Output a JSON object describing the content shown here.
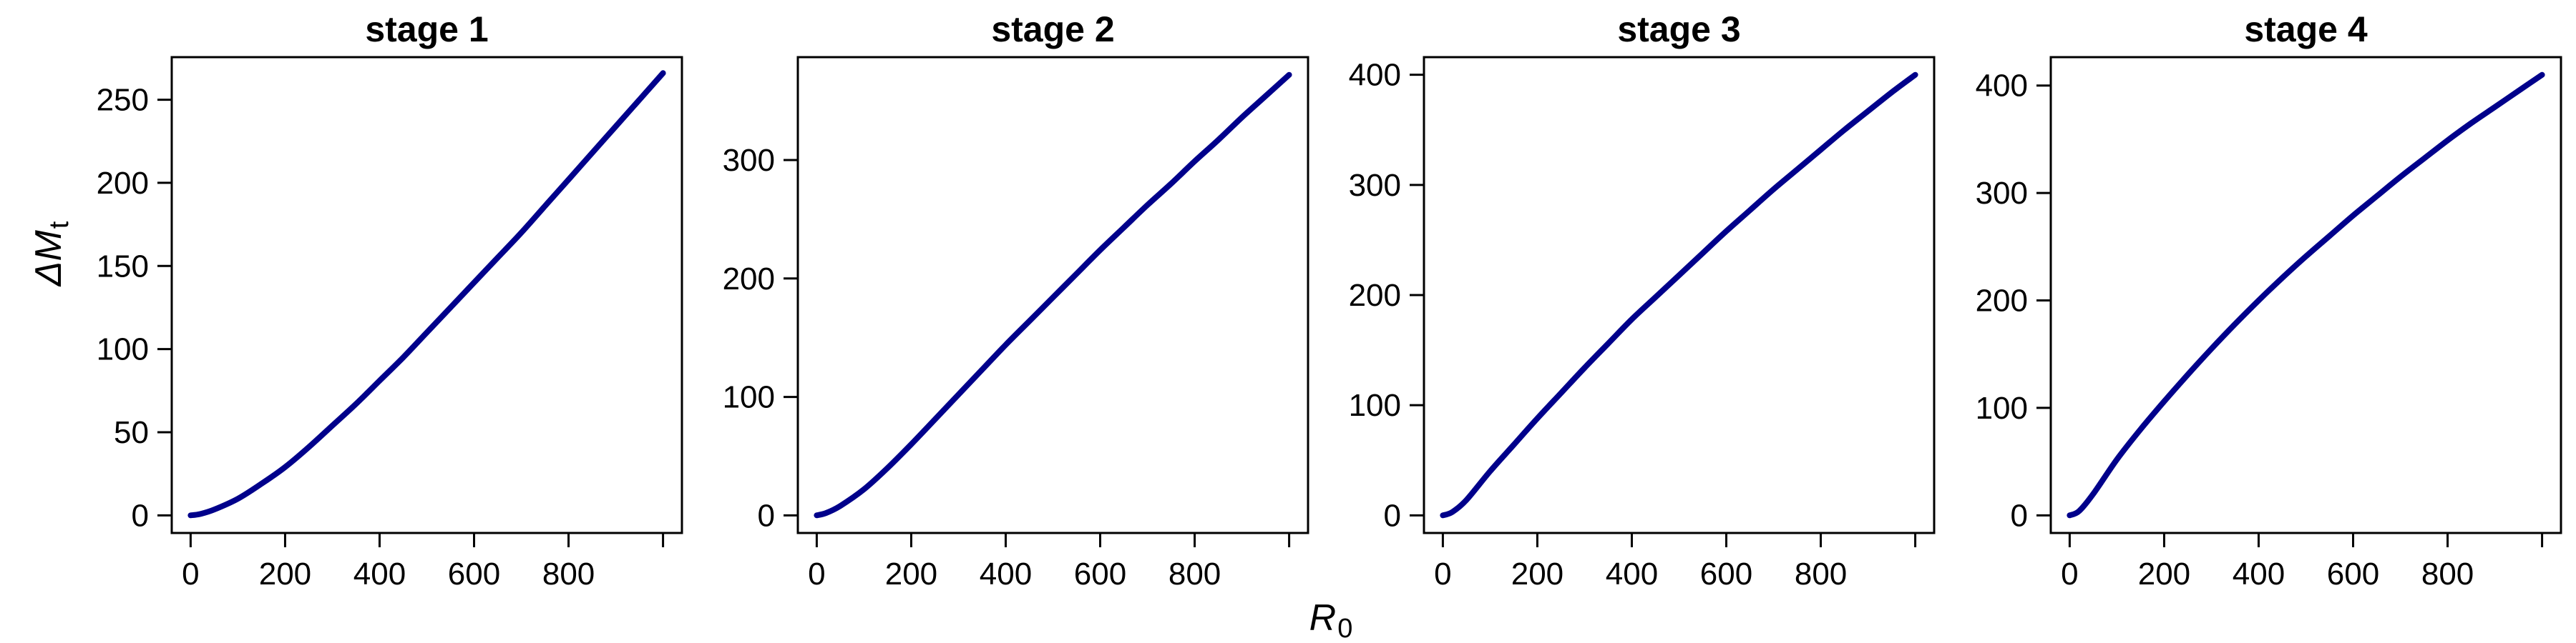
{
  "chart_data": {
    "type": "line",
    "shared_xlabel": "R",
    "shared_xlabel_sub": "0",
    "shared_ylabel": "ΔM",
    "shared_ylabel_sub": "t",
    "line_color": "#00008B",
    "panels": [
      {
        "title": "stage 1",
        "xlim": [
          0,
          1000
        ],
        "ylim": [
          0,
          265
        ],
        "xticks": [
          0,
          200,
          400,
          600,
          800,
          1000
        ],
        "xtick_labels": [
          "0",
          "200",
          "400",
          "600",
          "800",
          ""
        ],
        "yticks": [
          0,
          50,
          100,
          150,
          200,
          250
        ],
        "ytick_labels": [
          "0",
          "50",
          "100",
          "150",
          "200",
          "250"
        ],
        "x": [
          0,
          20,
          50,
          100,
          150,
          200,
          250,
          300,
          350,
          400,
          450,
          500,
          550,
          600,
          650,
          700,
          750,
          800,
          850,
          900,
          950,
          1000
        ],
        "y": [
          0,
          0.8,
          3.5,
          10,
          19,
          29,
          41,
          54,
          67,
          81,
          95,
          110,
          125,
          140,
          155,
          170,
          186,
          202,
          218,
          234,
          250,
          266
        ]
      },
      {
        "title": "stage 2",
        "xlim": [
          0,
          1000
        ],
        "ylim": [
          0,
          372
        ],
        "xticks": [
          0,
          200,
          400,
          600,
          800,
          1000
        ],
        "xtick_labels": [
          "0",
          "200",
          "400",
          "600",
          "800",
          ""
        ],
        "yticks": [
          0,
          100,
          200,
          300
        ],
        "ytick_labels": [
          "0",
          "100",
          "200",
          "300"
        ],
        "x": [
          0,
          20,
          50,
          100,
          150,
          200,
          250,
          300,
          350,
          400,
          450,
          500,
          550,
          600,
          650,
          700,
          750,
          800,
          850,
          900,
          950,
          1000
        ],
        "y": [
          0,
          2,
          8,
          22,
          40,
          60,
          81,
          102,
          123,
          144,
          164,
          184,
          204,
          224,
          243,
          262,
          280,
          299,
          317,
          336,
          354,
          372
        ]
      },
      {
        "title": "stage 3",
        "xlim": [
          0,
          1000
        ],
        "ylim": [
          0,
          400
        ],
        "xticks": [
          0,
          200,
          400,
          600,
          800,
          1000
        ],
        "xtick_labels": [
          "0",
          "200",
          "400",
          "600",
          "800",
          ""
        ],
        "yticks": [
          0,
          100,
          200,
          300,
          400
        ],
        "ytick_labels": [
          "0",
          "100",
          "200",
          "300",
          "400"
        ],
        "x": [
          0,
          20,
          50,
          100,
          150,
          200,
          250,
          300,
          350,
          400,
          450,
          500,
          550,
          600,
          650,
          700,
          750,
          800,
          850,
          900,
          950,
          1000
        ],
        "y": [
          0,
          3,
          14,
          40,
          64,
          88,
          111,
          134,
          156,
          178,
          198,
          218,
          238,
          258,
          277,
          296,
          314,
          332,
          350,
          367,
          384,
          400
        ]
      },
      {
        "title": "stage 4",
        "xlim": [
          0,
          1000
        ],
        "ylim": [
          0,
          410
        ],
        "xticks": [
          0,
          200,
          400,
          600,
          800,
          1000
        ],
        "xtick_labels": [
          "0",
          "200",
          "400",
          "600",
          "800",
          ""
        ],
        "yticks": [
          0,
          100,
          200,
          300,
          400
        ],
        "ytick_labels": [
          "0",
          "100",
          "200",
          "300",
          "400"
        ],
        "x": [
          0,
          20,
          50,
          100,
          150,
          200,
          250,
          300,
          350,
          400,
          450,
          500,
          550,
          600,
          650,
          700,
          750,
          800,
          850,
          900,
          950,
          1000
        ],
        "y": [
          0,
          4,
          20,
          52,
          80,
          106,
          131,
          155,
          178,
          200,
          221,
          241,
          260,
          279,
          297,
          315,
          332,
          349,
          365,
          380,
          395,
          410
        ]
      }
    ]
  }
}
